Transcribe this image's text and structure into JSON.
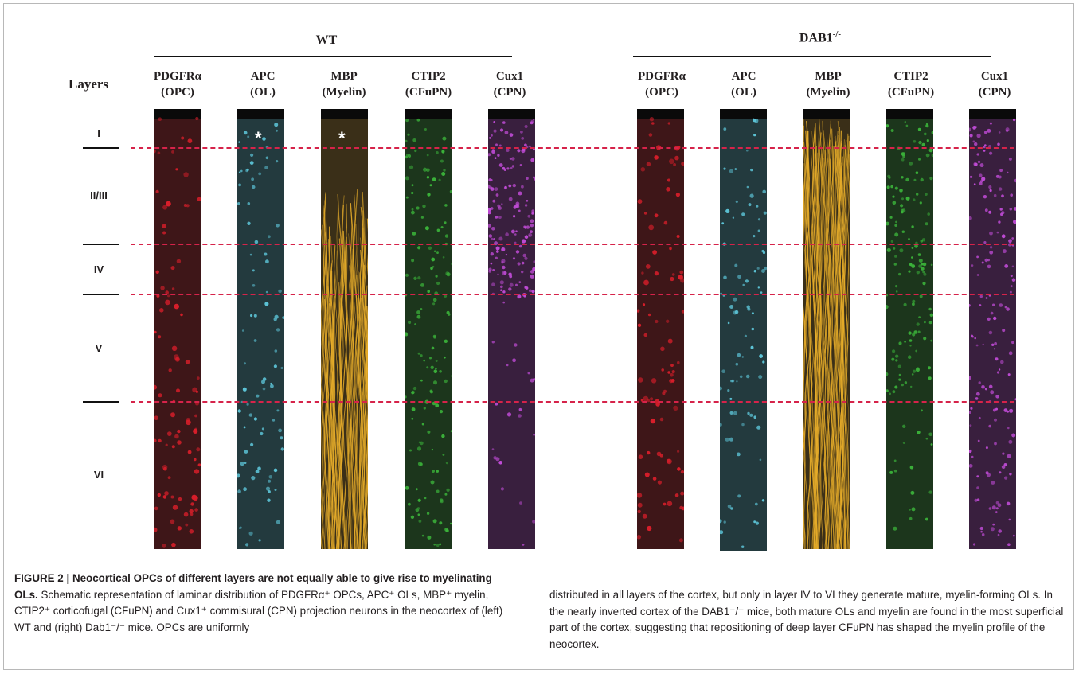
{
  "figure": {
    "wt_title": "WT",
    "dab_title_base": "DAB1",
    "dab_title_sup": "-/-",
    "layers_heading": "Layers",
    "wt_columns": [
      {
        "marker": "PDGFRα",
        "cell": "(OPC)",
        "color": "#d81e2a"
      },
      {
        "marker": "APC",
        "cell": "(OL)",
        "color": "#5cc3d6"
      },
      {
        "marker": "MBP",
        "cell": "(Myelin)",
        "color": "#e7ad2a"
      },
      {
        "marker": "CTIP2",
        "cell": "(CFuPN)",
        "color": "#3bb33a"
      },
      {
        "marker": "Cux1",
        "cell": "(CPN)",
        "color": "#c04bd6"
      }
    ],
    "dab_columns": [
      {
        "marker": "PDGFRα",
        "cell": "(OPC)",
        "color": "#d81e2a"
      },
      {
        "marker": "APC",
        "cell": "(OL)",
        "color": "#5cc3d6"
      },
      {
        "marker": "MBP",
        "cell": "(Myelin)",
        "color": "#e7ad2a"
      },
      {
        "marker": "CTIP2",
        "cell": "(CFuPN)",
        "color": "#3bb33a"
      },
      {
        "marker": "Cux1",
        "cell": "(CPN)",
        "color": "#c04bd6"
      }
    ],
    "layers": [
      "I",
      "II/III",
      "IV",
      "V",
      "VI"
    ],
    "asterisk": "*",
    "divider_color": "#d6234a"
  },
  "caption": {
    "title": "FIGURE 2 | Neocortical OPCs of different layers are not equally able to give rise to myelinating OLs.",
    "left_text": "Schematic representation of laminar distribution of PDGFRα⁺ OPCs, APC⁺ OLs, MBP⁺ myelin, CTIP2⁺ corticofugal (CFuPN) and Cux1⁺ commisural (CPN) projection neurons in the neocortex of (left) WT and (right) Dab1⁻/⁻ mice. OPCs are uniformly",
    "right_text": "distributed in all layers of the cortex, but only in layer IV to VI they generate mature, myelin-forming OLs. In the nearly inverted cortex of the DAB1⁻/⁻ mice, both mature OLs and myelin are found in the most superficial part of the cortex, suggesting that repositioning of deep layer CFuPN has shaped the myelin profile of the neocortex."
  }
}
